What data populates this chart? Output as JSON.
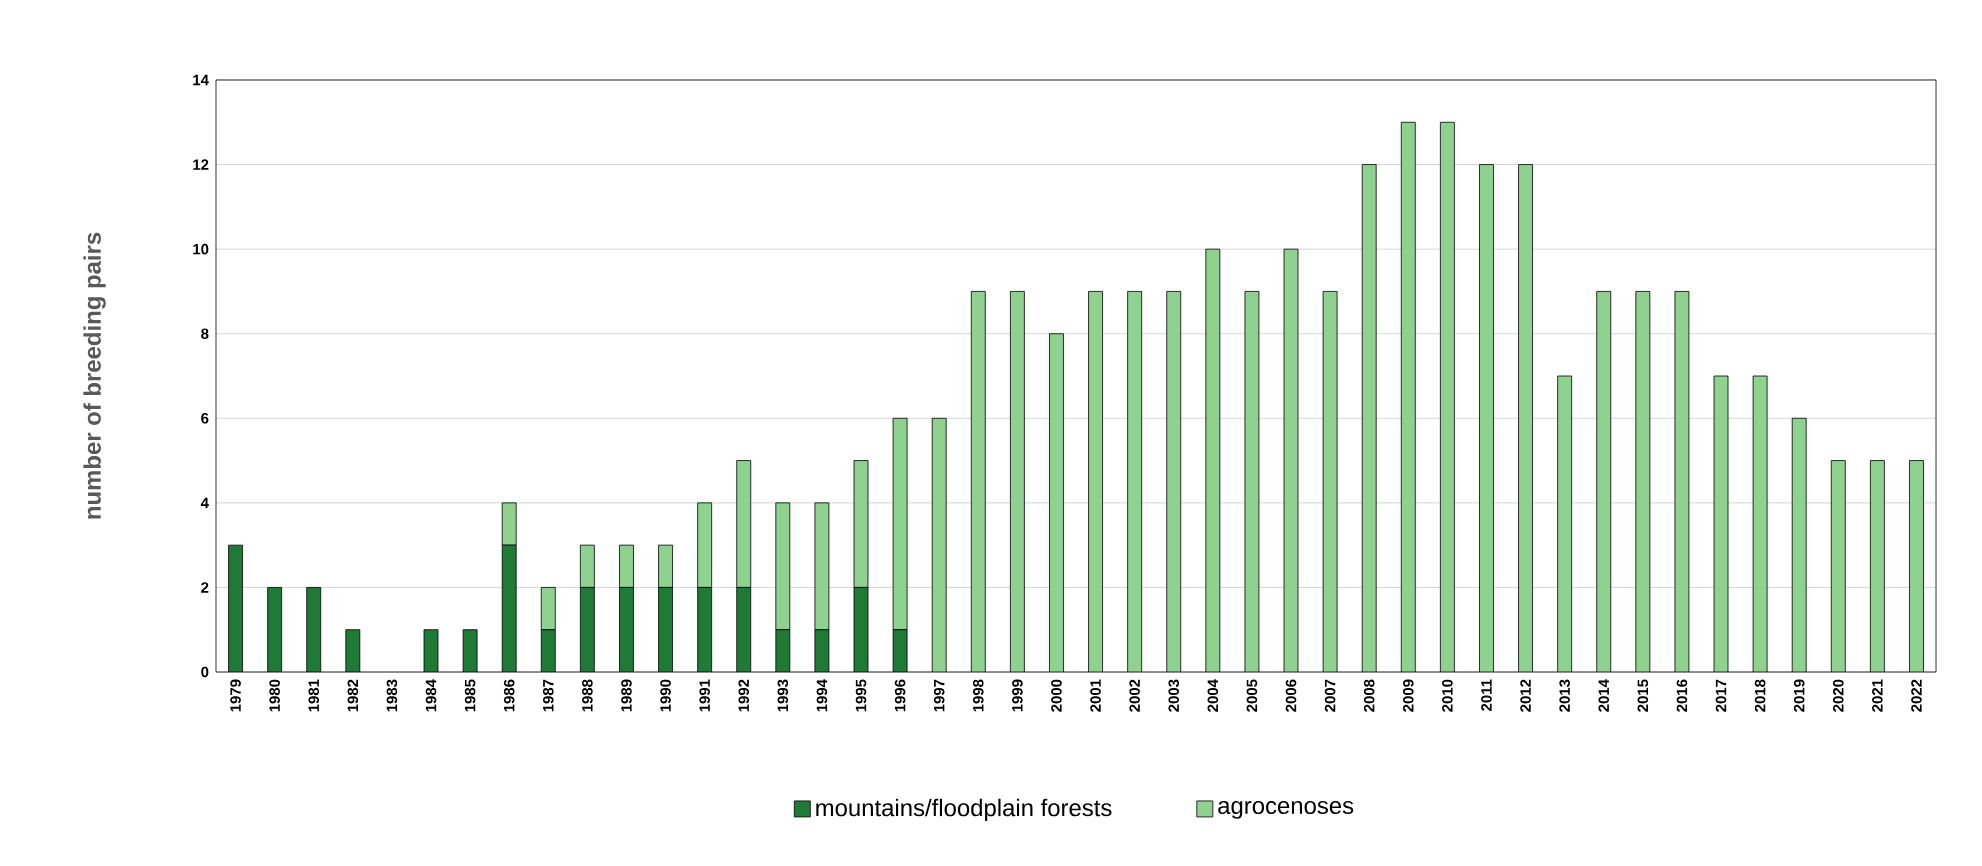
{
  "chart_data": {
    "type": "bar",
    "stacked": true,
    "ylabel": "number of breeding pairs",
    "categories": [
      "1979",
      "1980",
      "1981",
      "1982",
      "1983",
      "1984",
      "1985",
      "1986",
      "1987",
      "1988",
      "1989",
      "1990",
      "1991",
      "1992",
      "1993",
      "1994",
      "1995",
      "1996",
      "1997",
      "1998",
      "1999",
      "2000",
      "2001",
      "2002",
      "2003",
      "2004",
      "2005",
      "2006",
      "2007",
      "2008",
      "2009",
      "2010",
      "2011",
      "2012",
      "2013",
      "2014",
      "2015",
      "2016",
      "2017",
      "2018",
      "2019",
      "2020",
      "2021",
      "2022"
    ],
    "series": [
      {
        "name": "mountains/floodplain forests",
        "color": "#1f7a35",
        "values": [
          3,
          2,
          2,
          1,
          null,
          1,
          1,
          3,
          1,
          2,
          2,
          2,
          2,
          2,
          1,
          1,
          2,
          1,
          null,
          null,
          null,
          null,
          null,
          null,
          null,
          null,
          null,
          null,
          null,
          null,
          null,
          null,
          null,
          null,
          null,
          null,
          null,
          null,
          null,
          null,
          null,
          null,
          null,
          null
        ]
      },
      {
        "name": "agrocenoses",
        "color": "#8fd18f",
        "values": [
          null,
          null,
          null,
          null,
          null,
          null,
          null,
          1,
          1,
          1,
          1,
          1,
          2,
          3,
          3,
          3,
          3,
          5,
          6,
          9,
          9,
          8,
          9,
          9,
          9,
          10,
          9,
          10,
          9,
          12,
          13,
          13,
          12,
          12,
          7,
          9,
          9,
          9,
          7,
          7,
          6,
          5,
          5,
          5
        ]
      }
    ],
    "ylim": [
      0,
      14
    ],
    "yticks": [
      0,
      2,
      4,
      6,
      8,
      10,
      12,
      14
    ],
    "grid": "y",
    "legend": "bottom"
  }
}
